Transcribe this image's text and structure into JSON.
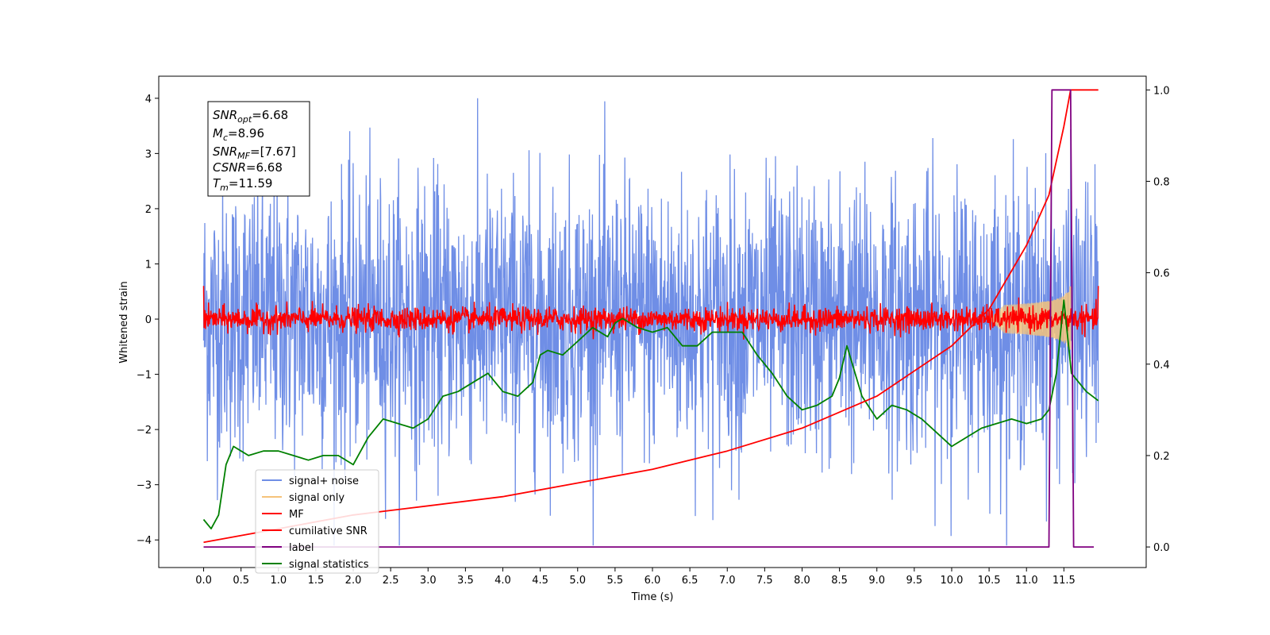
{
  "chart_data": {
    "type": "line",
    "xlabel": "Time (s)",
    "ylabel": "Whitened strain",
    "xlim": [
      -0.6,
      12.6
    ],
    "ylim": [
      -4.5,
      4.4
    ],
    "y2lim": [
      -0.045,
      1.03
    ],
    "x_ticks": [
      "0.0",
      "0.5",
      "1.0",
      "1.5",
      "2.0",
      "2.5",
      "3.0",
      "3.5",
      "4.0",
      "4.5",
      "5.0",
      "5.5",
      "6.0",
      "6.5",
      "7.0",
      "7.5",
      "8.0",
      "8.5",
      "9.0",
      "9.5",
      "10.0",
      "10.5",
      "11.0",
      "11.5"
    ],
    "y_ticks": [
      "4",
      "3",
      "2",
      "1",
      "0",
      "−1",
      "−2",
      "−3",
      "−4"
    ],
    "y2_ticks": [
      "1.0",
      "0.8",
      "0.6",
      "0.4",
      "0.2",
      "0.0"
    ],
    "legend_placement": "lower-left",
    "info_box": {
      "snr_opt_label": "SNR",
      "snr_opt_sub": "opt",
      "snr_opt_value": "=6.68",
      "mc_label": "M",
      "mc_sub": "c",
      "mc_value": "=8.96",
      "snr_mf_label": "SNR",
      "snr_mf_sub": "MF",
      "snr_mf_value": "=[7.67]",
      "csnr_label": "CSNR",
      "csnr_value": "=6.68",
      "tm_label": "T",
      "tm_sub": "m",
      "tm_value": "=11.59"
    },
    "series": [
      {
        "name": "signal+ noise",
        "color": "#6f8ee6",
        "axis": "left",
        "noise_envelope": [
          -2.2,
          2.2
        ],
        "x_range": [
          0.0,
          11.96
        ]
      },
      {
        "name": "signal only",
        "color": "#f5c37a",
        "axis": "left",
        "x_range": [
          10.5,
          11.59
        ],
        "max_amplitude": 0.6
      },
      {
        "name": "MF",
        "color": "#ff0000",
        "axis": "left",
        "noise_envelope": [
          -0.15,
          0.15
        ],
        "x_range": [
          0.0,
          11.96
        ]
      },
      {
        "name": "cumilative SNR",
        "color": "#ff0000",
        "axis": "right",
        "x": [
          0.0,
          1.0,
          2.0,
          3.0,
          4.0,
          5.0,
          6.0,
          7.0,
          8.0,
          9.0,
          10.0,
          10.5,
          11.0,
          11.3,
          11.5,
          11.59,
          11.96
        ],
        "values": [
          0.01,
          0.04,
          0.07,
          0.09,
          0.11,
          0.14,
          0.17,
          0.21,
          0.26,
          0.33,
          0.44,
          0.52,
          0.66,
          0.77,
          0.92,
          1.0,
          1.0
        ]
      },
      {
        "name": "label",
        "color": "#800080",
        "axis": "right",
        "x": [
          0.0,
          11.3,
          11.34,
          11.59,
          11.63,
          11.9
        ],
        "values": [
          0.0,
          0.0,
          1.0,
          1.0,
          0.0,
          0.0
        ]
      },
      {
        "name": "signal statistics",
        "color": "#008000",
        "axis": "right",
        "x": [
          0.0,
          0.1,
          0.2,
          0.3,
          0.4,
          0.5,
          0.6,
          0.8,
          1.0,
          1.2,
          1.4,
          1.6,
          1.8,
          2.0,
          2.2,
          2.4,
          2.6,
          2.8,
          3.0,
          3.2,
          3.4,
          3.6,
          3.8,
          4.0,
          4.2,
          4.4,
          4.5,
          4.6,
          4.8,
          5.0,
          5.2,
          5.4,
          5.5,
          5.6,
          5.8,
          6.0,
          6.2,
          6.4,
          6.6,
          6.8,
          7.0,
          7.2,
          7.4,
          7.6,
          7.8,
          8.0,
          8.2,
          8.4,
          8.5,
          8.6,
          8.8,
          9.0,
          9.2,
          9.4,
          9.6,
          9.8,
          10.0,
          10.2,
          10.4,
          10.6,
          10.8,
          11.0,
          11.2,
          11.3,
          11.4,
          11.5,
          11.6,
          11.8,
          11.96
        ],
        "values": [
          0.06,
          0.04,
          0.07,
          0.18,
          0.22,
          0.21,
          0.2,
          0.21,
          0.21,
          0.2,
          0.19,
          0.2,
          0.2,
          0.18,
          0.24,
          0.28,
          0.27,
          0.26,
          0.28,
          0.33,
          0.34,
          0.36,
          0.38,
          0.34,
          0.33,
          0.36,
          0.42,
          0.43,
          0.42,
          0.45,
          0.48,
          0.46,
          0.49,
          0.5,
          0.48,
          0.47,
          0.48,
          0.44,
          0.44,
          0.47,
          0.47,
          0.47,
          0.42,
          0.38,
          0.33,
          0.3,
          0.31,
          0.33,
          0.37,
          0.44,
          0.33,
          0.28,
          0.31,
          0.3,
          0.28,
          0.25,
          0.22,
          0.24,
          0.26,
          0.27,
          0.28,
          0.27,
          0.28,
          0.3,
          0.38,
          0.54,
          0.38,
          0.34,
          0.32
        ]
      }
    ]
  }
}
